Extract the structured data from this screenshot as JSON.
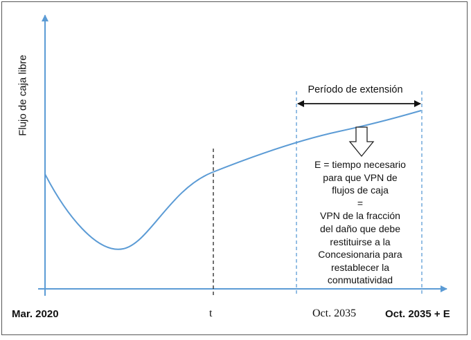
{
  "diagram": {
    "y_axis_label": "Flujo de caja libre",
    "x_labels": {
      "start": "Mar. 2020",
      "t": "t",
      "oct": "Oct. 2035",
      "end": "Oct. 2035 + E"
    },
    "period_label": "Período de extensión",
    "annotation_lines": [
      "E = tiempo necesario",
      "para que VPN de",
      "flujos de caja",
      "=",
      "VPN de la fracción",
      "del daño que debe",
      "restituirse a la",
      "Concesionaria para",
      "restablecer la",
      "conmutatividad"
    ],
    "colors": {
      "axis": "#5b9bd5",
      "curve": "#5b9bd5",
      "dashed_blue": "#5b9bd5",
      "dashed_black": "#222222",
      "text": "#111111",
      "frame": "#555555"
    }
  }
}
